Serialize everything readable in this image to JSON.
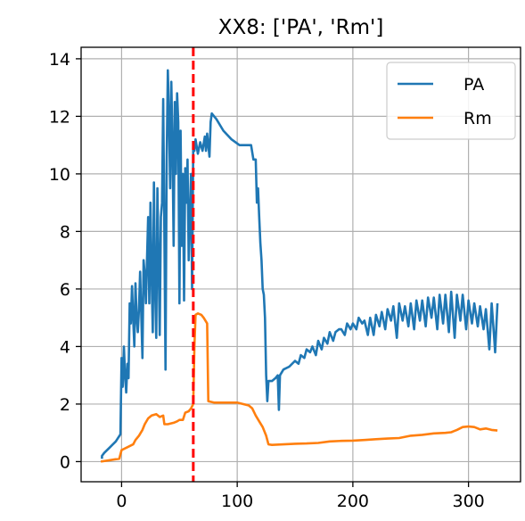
{
  "chart_data": {
    "type": "line",
    "title": "XX8: ['PA', 'Rm']",
    "xlabel": "",
    "ylabel": "",
    "xlim": [
      -35,
      345
    ],
    "ylim": [
      -0.7,
      14.4
    ],
    "x_ticks": [
      0,
      100,
      200,
      300
    ],
    "y_ticks": [
      0,
      2,
      4,
      6,
      8,
      10,
      12,
      14
    ],
    "x_tick_labels": [
      "0",
      "100",
      "200",
      "300"
    ],
    "y_tick_labels": [
      "0",
      "2",
      "4",
      "6",
      "8",
      "10",
      "12",
      "14"
    ],
    "grid": true,
    "legend_position": "top-right",
    "vline": {
      "x": 62,
      "color": "#ff0000",
      "style": "dashed"
    },
    "series": [
      {
        "name": "PA",
        "color": "#1f77b4",
        "points": [
          [
            -17,
            0.1
          ],
          [
            -17,
            0.2
          ],
          [
            -15,
            0.3
          ],
          [
            -10,
            0.5
          ],
          [
            -5,
            0.7
          ],
          [
            -1,
            0.95
          ],
          [
            0,
            3.6
          ],
          [
            1,
            2.6
          ],
          [
            2,
            4.0
          ],
          [
            3,
            3.0
          ],
          [
            4,
            2.4
          ],
          [
            5,
            3.4
          ],
          [
            6,
            2.9
          ],
          [
            7,
            5.5
          ],
          [
            8,
            4.8
          ],
          [
            9,
            6.1
          ],
          [
            10,
            5.0
          ],
          [
            11,
            4.0
          ],
          [
            12,
            6.2
          ],
          [
            13,
            5.0
          ],
          [
            14,
            4.5
          ],
          [
            15,
            5.3
          ],
          [
            16,
            6.6
          ],
          [
            17,
            5.1
          ],
          [
            18,
            3.6
          ],
          [
            19,
            7.0
          ],
          [
            20,
            6.5
          ],
          [
            21,
            5.5
          ],
          [
            22,
            7.0
          ],
          [
            23,
            8.5
          ],
          [
            24,
            5.5
          ],
          [
            25,
            9.0
          ],
          [
            26,
            6.5
          ],
          [
            27,
            4.5
          ],
          [
            28,
            9.7
          ],
          [
            29,
            6.0
          ],
          [
            30,
            4.3
          ],
          [
            31,
            9.5
          ],
          [
            32,
            7.0
          ],
          [
            33,
            4.4
          ],
          [
            34,
            8.5
          ],
          [
            35,
            9.0
          ],
          [
            36,
            12.6
          ],
          [
            37,
            8.0
          ],
          [
            38,
            3.2
          ],
          [
            39,
            10.5
          ],
          [
            40,
            13.6
          ],
          [
            41,
            12.0
          ],
          [
            42,
            9.5
          ],
          [
            43,
            13.2
          ],
          [
            44,
            11.0
          ],
          [
            45,
            7.5
          ],
          [
            46,
            12.5
          ],
          [
            47,
            10.0
          ],
          [
            48,
            12.8
          ],
          [
            49,
            11.8
          ],
          [
            50,
            5.5
          ],
          [
            51,
            11.5
          ],
          [
            52,
            7.5
          ],
          [
            53,
            10.0
          ],
          [
            54,
            5.6
          ],
          [
            55,
            10.2
          ],
          [
            56,
            9.0
          ],
          [
            57,
            10.5
          ],
          [
            58,
            7.0
          ],
          [
            59,
            8.5
          ],
          [
            60,
            10.0
          ],
          [
            61,
            6.0
          ],
          [
            62,
            11.0
          ],
          [
            63,
            10.8
          ],
          [
            64,
            11.2
          ],
          [
            66,
            10.7
          ],
          [
            68,
            11.1
          ],
          [
            70,
            10.8
          ],
          [
            72,
            11.3
          ],
          [
            73,
            10.8
          ],
          [
            74,
            11.4
          ],
          [
            75,
            11.0
          ],
          [
            76,
            10.6
          ],
          [
            77,
            11.8
          ],
          [
            78,
            12.1
          ],
          [
            82,
            11.9
          ],
          [
            88,
            11.5
          ],
          [
            95,
            11.2
          ],
          [
            102,
            11.0
          ],
          [
            108,
            11.0
          ],
          [
            112,
            11.0
          ],
          [
            114,
            10.5
          ],
          [
            116,
            10.5
          ],
          [
            117,
            9.0
          ],
          [
            118,
            9.5
          ],
          [
            119,
            8.5
          ],
          [
            120,
            7.6
          ],
          [
            121,
            7.0
          ],
          [
            122,
            6.0
          ],
          [
            123,
            5.8
          ],
          [
            124,
            5.0
          ],
          [
            125,
            3.0
          ],
          [
            126,
            2.1
          ],
          [
            127,
            2.8
          ],
          [
            130,
            2.8
          ],
          [
            133,
            2.9
          ],
          [
            135,
            3.0
          ],
          [
            136,
            1.8
          ],
          [
            137,
            3.0
          ],
          [
            140,
            3.2
          ],
          [
            145,
            3.3
          ],
          [
            150,
            3.5
          ],
          [
            153,
            3.4
          ],
          [
            155,
            3.7
          ],
          [
            158,
            3.6
          ],
          [
            160,
            3.9
          ],
          [
            163,
            3.8
          ],
          [
            165,
            4.0
          ],
          [
            168,
            3.7
          ],
          [
            170,
            4.2
          ],
          [
            173,
            3.9
          ],
          [
            175,
            4.3
          ],
          [
            178,
            4.1
          ],
          [
            180,
            4.5
          ],
          [
            183,
            4.2
          ],
          [
            185,
            4.5
          ],
          [
            188,
            4.6
          ],
          [
            190,
            4.6
          ],
          [
            193,
            4.4
          ],
          [
            195,
            4.8
          ],
          [
            198,
            4.6
          ],
          [
            200,
            4.8
          ],
          [
            203,
            4.6
          ],
          [
            205,
            5.0
          ],
          [
            208,
            4.8
          ],
          [
            210,
            4.9
          ],
          [
            213,
            4.4
          ],
          [
            215,
            5.0
          ],
          [
            218,
            4.4
          ],
          [
            220,
            5.1
          ],
          [
            223,
            4.7
          ],
          [
            225,
            5.2
          ],
          [
            228,
            4.6
          ],
          [
            230,
            5.3
          ],
          [
            233,
            4.9
          ],
          [
            235,
            5.4
          ],
          [
            238,
            4.3
          ],
          [
            240,
            5.5
          ],
          [
            243,
            4.9
          ],
          [
            245,
            5.4
          ],
          [
            248,
            4.7
          ],
          [
            250,
            5.5
          ],
          [
            253,
            4.6
          ],
          [
            255,
            5.6
          ],
          [
            258,
            4.9
          ],
          [
            260,
            5.6
          ],
          [
            263,
            4.7
          ],
          [
            265,
            5.7
          ],
          [
            268,
            5.0
          ],
          [
            270,
            5.7
          ],
          [
            273,
            4.6
          ],
          [
            275,
            5.8
          ],
          [
            278,
            4.8
          ],
          [
            280,
            5.8
          ],
          [
            283,
            4.5
          ],
          [
            285,
            5.9
          ],
          [
            288,
            4.3
          ],
          [
            290,
            5.8
          ],
          [
            293,
            4.9
          ],
          [
            295,
            5.8
          ],
          [
            298,
            4.6
          ],
          [
            300,
            5.6
          ],
          [
            303,
            4.8
          ],
          [
            305,
            5.5
          ],
          [
            308,
            4.7
          ],
          [
            310,
            5.4
          ],
          [
            313,
            4.6
          ],
          [
            315,
            5.3
          ],
          [
            318,
            3.9
          ],
          [
            320,
            5.5
          ],
          [
            322,
            4.4
          ],
          [
            323,
            3.8
          ],
          [
            325,
            5.5
          ]
        ]
      },
      {
        "name": "Rm",
        "color": "#ff7f0e",
        "points": [
          [
            -18,
            0.0
          ],
          [
            -10,
            0.05
          ],
          [
            -2,
            0.1
          ],
          [
            0,
            0.4
          ],
          [
            5,
            0.5
          ],
          [
            10,
            0.6
          ],
          [
            12,
            0.75
          ],
          [
            15,
            0.9
          ],
          [
            18,
            1.1
          ],
          [
            20,
            1.3
          ],
          [
            23,
            1.5
          ],
          [
            26,
            1.6
          ],
          [
            30,
            1.65
          ],
          [
            33,
            1.55
          ],
          [
            36,
            1.6
          ],
          [
            37,
            1.3
          ],
          [
            40,
            1.3
          ],
          [
            45,
            1.35
          ],
          [
            48,
            1.4
          ],
          [
            50,
            1.45
          ],
          [
            53,
            1.45
          ],
          [
            55,
            1.7
          ],
          [
            58,
            1.75
          ],
          [
            60,
            1.85
          ],
          [
            62,
            2.0
          ],
          [
            63,
            4.0
          ],
          [
            64,
            5.1
          ],
          [
            66,
            5.15
          ],
          [
            69,
            5.1
          ],
          [
            71,
            5.0
          ],
          [
            74,
            4.8
          ],
          [
            75,
            2.1
          ],
          [
            80,
            2.05
          ],
          [
            90,
            2.05
          ],
          [
            100,
            2.05
          ],
          [
            105,
            2.0
          ],
          [
            110,
            1.95
          ],
          [
            113,
            1.85
          ],
          [
            116,
            1.6
          ],
          [
            119,
            1.4
          ],
          [
            122,
            1.2
          ],
          [
            125,
            0.9
          ],
          [
            127,
            0.6
          ],
          [
            130,
            0.58
          ],
          [
            140,
            0.6
          ],
          [
            150,
            0.62
          ],
          [
            160,
            0.63
          ],
          [
            170,
            0.65
          ],
          [
            180,
            0.7
          ],
          [
            190,
            0.72
          ],
          [
            200,
            0.73
          ],
          [
            210,
            0.75
          ],
          [
            220,
            0.78
          ],
          [
            230,
            0.8
          ],
          [
            240,
            0.82
          ],
          [
            250,
            0.9
          ],
          [
            260,
            0.93
          ],
          [
            270,
            0.98
          ],
          [
            280,
            1.0
          ],
          [
            285,
            1.02
          ],
          [
            290,
            1.1
          ],
          [
            295,
            1.2
          ],
          [
            300,
            1.22
          ],
          [
            305,
            1.2
          ],
          [
            310,
            1.12
          ],
          [
            315,
            1.15
          ],
          [
            320,
            1.1
          ],
          [
            325,
            1.08
          ]
        ]
      }
    ]
  }
}
